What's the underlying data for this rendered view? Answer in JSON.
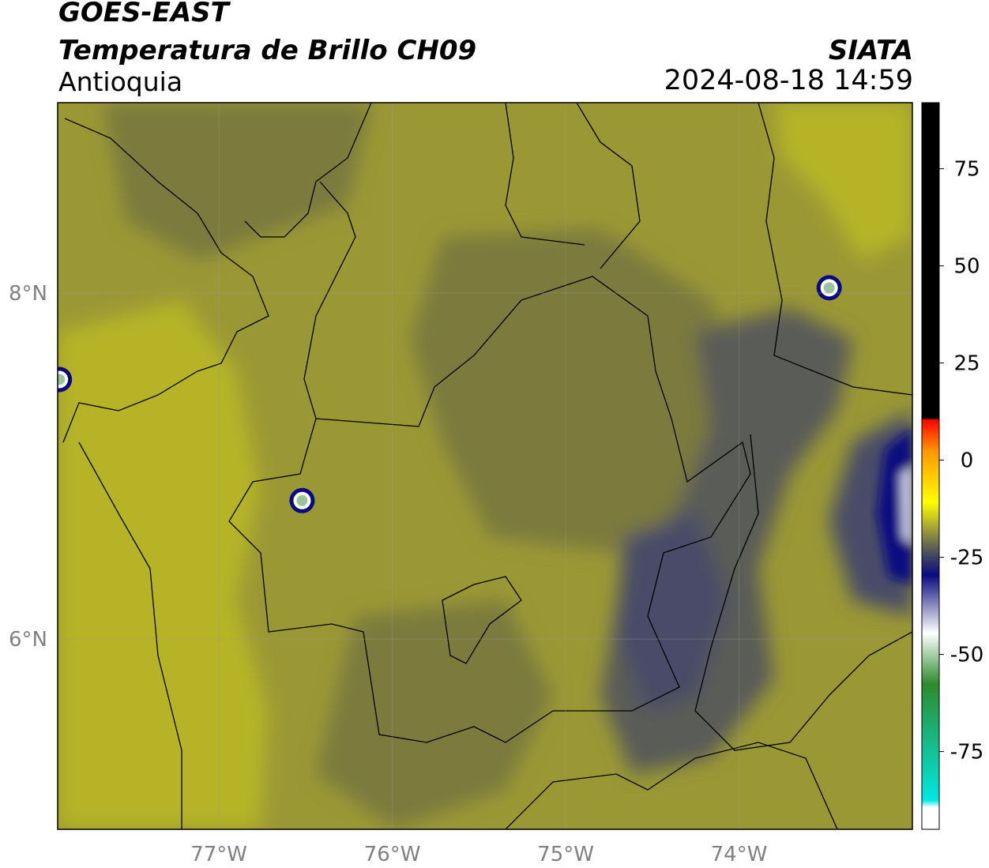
{
  "header": {
    "satellite": "GOES-EAST",
    "product": "Temperatura de Brillo CH09",
    "region": "Antioquia",
    "brand": "SIATA",
    "datetime": "2024-08-18 14:59"
  },
  "map": {
    "extent": {
      "lon": [
        -77.93,
        -73.0
      ],
      "lat": [
        4.9,
        9.1
      ]
    },
    "lon_ticks": [
      -77,
      -76,
      -75,
      -74
    ],
    "lon_tick_labels": [
      "77°W",
      "76°W",
      "75°W",
      "74°W"
    ],
    "lat_ticks": [
      8,
      6
    ],
    "lat_tick_labels": [
      "8°N",
      "6°N"
    ],
    "grid": true,
    "cold_cells": [
      {
        "lon": -76.52,
        "lat": 6.8,
        "tb": -60
      },
      {
        "lon": -73.48,
        "lat": 8.03,
        "tb": -60
      },
      {
        "lon": -77.92,
        "lat": 7.5,
        "tb": -55
      }
    ]
  },
  "colorbar": {
    "range": [
      -95,
      92
    ],
    "ticks": [
      75,
      50,
      25,
      0,
      -25,
      -50,
      -75
    ],
    "tick_labels": [
      "75",
      "50",
      "25",
      "0",
      "-25",
      "-50",
      "-75"
    ],
    "colors": {
      "warm": "#000000",
      "hot": "#ff0000",
      "orange": "#ff9900",
      "yellow": "#ffff00",
      "olive": "#a3a336",
      "slate": "#4b4d5e",
      "navy": "#0a0a80",
      "white": "#ffffff",
      "green": "#2e8b2e",
      "cyan": "#00e8e0"
    }
  },
  "palette": {
    "background_light": "#b6b427",
    "background_mid": "#9a9835",
    "background_dark": "#7b7a3e",
    "cloud_gray": "#5a5c58",
    "cloud_slate": "#4a4c68"
  }
}
